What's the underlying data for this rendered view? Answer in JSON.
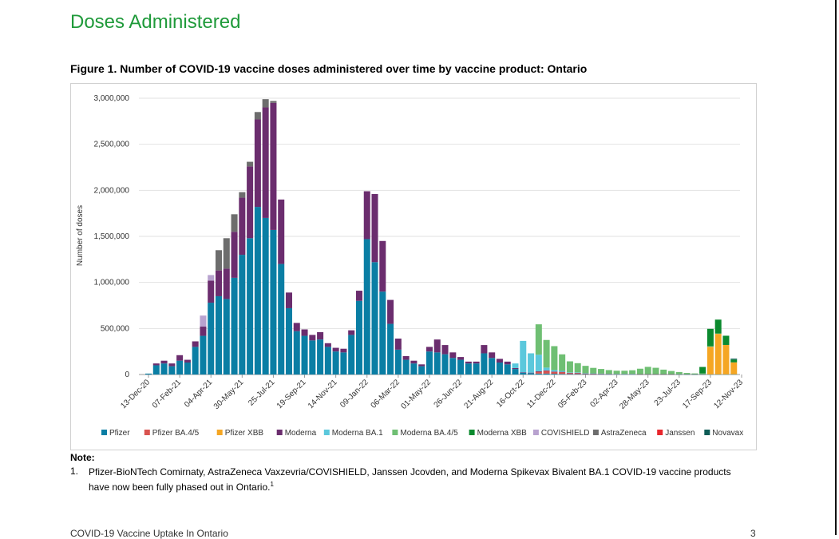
{
  "page": {
    "heading": "Doses Administered",
    "figure_title": "Figure 1. Number of COVID-19 vaccine doses administered over time by vaccine product: Ontario",
    "note_label": "Note:",
    "note_number": "1.",
    "note_text": "Pfizer-BioNTech Comirnaty, AstraZeneca Vaxzevria/COVISHIELD, Janssen Jcovden, and Moderna Spikevax Bivalent BA.1 COVID-19 vaccine products have now been fully phased out in Ontario.",
    "note_superscript": "1",
    "footer_left": "COVID-19 Vaccine Uptake In Ontario",
    "footer_right": "3"
  },
  "chart_data": {
    "type": "bar",
    "stacked": true,
    "ylabel": "Number of doses",
    "ylim": [
      0,
      3000000
    ],
    "y_ticks": [
      "0",
      "500,000",
      "1,000,000",
      "1,500,000",
      "2,000,000",
      "2,500,000",
      "3,000,000"
    ],
    "y_tick_values": [
      0,
      500000,
      1000000,
      1500000,
      2000000,
      2500000,
      3000000
    ],
    "grid": true,
    "legend_position": "bottom",
    "x_tick_labels": [
      "13-Dec-20",
      "07-Feb-21",
      "04-Apr-21",
      "30-May-21",
      "25-Jul-21",
      "19-Sep-21",
      "14-Nov-21",
      "09-Jan-22",
      "06-Mar-22",
      "01-May-22",
      "26-Jun-22",
      "21-Aug-22",
      "16-Oct-22",
      "11-Dec-22",
      "05-Feb-23",
      "02-Apr-23",
      "28-May-23",
      "23-Jul-23",
      "17-Sep-23",
      "12-Nov-23"
    ],
    "x_tick_every": 4,
    "series": [
      {
        "name": "Pfizer",
        "color": "#0a7ea4",
        "values": [
          10000,
          100000,
          120000,
          90000,
          150000,
          130000,
          300000,
          420000,
          780000,
          850000,
          820000,
          1050000,
          1300000,
          1480000,
          1820000,
          1700000,
          1570000,
          1200000,
          720000,
          470000,
          420000,
          370000,
          380000,
          300000,
          250000,
          240000,
          430000,
          800000,
          1470000,
          1220000,
          900000,
          550000,
          270000,
          160000,
          120000,
          90000,
          250000,
          240000,
          220000,
          180000,
          160000,
          120000,
          120000,
          230000,
          180000,
          130000,
          110000,
          60000,
          20000,
          15000,
          10000,
          10000,
          8000,
          6000,
          5000,
          5000,
          4000,
          3000,
          3000,
          2000,
          2000,
          2000,
          2000,
          1000,
          1000,
          1000,
          1000,
          1000,
          1000,
          1000,
          1000,
          1000,
          1000,
          1000,
          1000,
          2000
        ]
      },
      {
        "name": "Pfizer BA.4/5",
        "color": "#d9534f",
        "values": [
          0,
          0,
          0,
          0,
          0,
          0,
          0,
          0,
          0,
          0,
          0,
          0,
          0,
          0,
          0,
          0,
          0,
          0,
          0,
          0,
          0,
          0,
          0,
          0,
          0,
          0,
          0,
          0,
          0,
          0,
          0,
          0,
          0,
          0,
          0,
          0,
          0,
          0,
          0,
          0,
          0,
          0,
          0,
          0,
          0,
          0,
          0,
          0,
          0,
          0,
          20000,
          30000,
          20000,
          20000,
          10000,
          10000,
          5000,
          5000,
          3000,
          3000,
          2000,
          2000,
          2000,
          1000,
          1000,
          1000,
          1000,
          1000,
          0,
          0,
          0,
          0,
          0,
          0,
          0,
          0
        ]
      },
      {
        "name": "Pfizer XBB",
        "color": "#f5a623",
        "values": [
          0,
          0,
          0,
          0,
          0,
          0,
          0,
          0,
          0,
          0,
          0,
          0,
          0,
          0,
          0,
          0,
          0,
          0,
          0,
          0,
          0,
          0,
          0,
          0,
          0,
          0,
          0,
          0,
          0,
          0,
          0,
          0,
          0,
          0,
          0,
          0,
          0,
          0,
          0,
          0,
          0,
          0,
          0,
          0,
          0,
          0,
          0,
          0,
          0,
          0,
          0,
          0,
          0,
          0,
          0,
          0,
          0,
          0,
          0,
          0,
          0,
          0,
          0,
          0,
          0,
          0,
          0,
          0,
          0,
          0,
          0,
          0,
          300000,
          440000,
          320000,
          130000
        ]
      },
      {
        "name": "Moderna",
        "color": "#6b2d6e",
        "values": [
          0,
          20000,
          30000,
          30000,
          60000,
          30000,
          60000,
          100000,
          240000,
          280000,
          330000,
          500000,
          620000,
          780000,
          950000,
          1200000,
          1380000,
          700000,
          170000,
          90000,
          70000,
          60000,
          80000,
          40000,
          40000,
          40000,
          50000,
          110000,
          520000,
          740000,
          550000,
          260000,
          120000,
          40000,
          30000,
          20000,
          50000,
          140000,
          100000,
          60000,
          30000,
          20000,
          20000,
          90000,
          60000,
          40000,
          30000,
          10000,
          5000,
          5000,
          5000,
          5000,
          5000,
          3000,
          3000,
          3000,
          2000,
          2000,
          2000,
          2000,
          1000,
          1000,
          1000,
          1000,
          1000,
          1000,
          1000,
          1000,
          1000,
          1000,
          1000,
          1000,
          0,
          0,
          0,
          0
        ]
      },
      {
        "name": "Moderna BA.1",
        "color": "#5bc8dc",
        "values": [
          0,
          0,
          0,
          0,
          0,
          0,
          0,
          0,
          0,
          0,
          0,
          0,
          0,
          0,
          0,
          0,
          0,
          0,
          0,
          0,
          0,
          0,
          0,
          0,
          0,
          0,
          0,
          0,
          0,
          0,
          0,
          0,
          0,
          0,
          0,
          0,
          0,
          0,
          0,
          0,
          0,
          0,
          0,
          0,
          0,
          0,
          0,
          50000,
          340000,
          210000,
          180000,
          30000,
          15000,
          10000,
          5000,
          5000,
          3000,
          2000,
          2000,
          1000,
          1000,
          1000,
          1000,
          0,
          0,
          0,
          0,
          0,
          0,
          0,
          0,
          0,
          0,
          0,
          0,
          0
        ]
      },
      {
        "name": "Moderna BA.4/5",
        "color": "#6fbf73",
        "values": [
          0,
          0,
          0,
          0,
          0,
          0,
          0,
          0,
          0,
          0,
          0,
          0,
          0,
          0,
          0,
          0,
          0,
          0,
          0,
          0,
          0,
          0,
          0,
          0,
          0,
          0,
          0,
          0,
          0,
          0,
          0,
          0,
          0,
          0,
          0,
          0,
          0,
          0,
          0,
          0,
          0,
          0,
          0,
          0,
          0,
          0,
          0,
          0,
          0,
          0,
          330000,
          300000,
          260000,
          180000,
          120000,
          100000,
          80000,
          60000,
          50000,
          40000,
          35000,
          35000,
          40000,
          60000,
          80000,
          70000,
          50000,
          35000,
          25000,
          15000,
          10000,
          10000,
          5000,
          5000,
          0,
          0
        ]
      },
      {
        "name": "Moderna XBB",
        "color": "#0b8a2e",
        "values": [
          0,
          0,
          0,
          0,
          0,
          0,
          0,
          0,
          0,
          0,
          0,
          0,
          0,
          0,
          0,
          0,
          0,
          0,
          0,
          0,
          0,
          0,
          0,
          0,
          0,
          0,
          0,
          0,
          0,
          0,
          0,
          0,
          0,
          0,
          0,
          0,
          0,
          0,
          0,
          0,
          0,
          0,
          0,
          0,
          0,
          0,
          0,
          0,
          0,
          0,
          0,
          0,
          0,
          0,
          0,
          0,
          0,
          0,
          0,
          0,
          0,
          0,
          0,
          0,
          0,
          0,
          0,
          0,
          0,
          0,
          0,
          70000,
          190000,
          150000,
          100000,
          30000
        ]
      },
      {
        "name": "COVISHIELD",
        "color": "#b8a2cf",
        "values": [
          0,
          0,
          0,
          0,
          0,
          0,
          0,
          120000,
          60000,
          0,
          0,
          0,
          0,
          0,
          0,
          0,
          0,
          0,
          0,
          0,
          0,
          0,
          0,
          0,
          0,
          0,
          0,
          0,
          0,
          0,
          0,
          0,
          0,
          0,
          0,
          0,
          0,
          0,
          0,
          0,
          0,
          0,
          0,
          0,
          0,
          0,
          0,
          0,
          0,
          0,
          0,
          0,
          0,
          0,
          0,
          0,
          0,
          0,
          0,
          0,
          0,
          0,
          0,
          0,
          0,
          0,
          0,
          0,
          0,
          0,
          0,
          0,
          0,
          0,
          0,
          0
        ]
      },
      {
        "name": "AstraZeneca",
        "color": "#6d6d6d",
        "values": [
          0,
          0,
          0,
          0,
          0,
          0,
          0,
          0,
          0,
          220000,
          330000,
          190000,
          60000,
          50000,
          80000,
          90000,
          20000,
          0,
          0,
          0,
          0,
          0,
          0,
          0,
          0,
          0,
          0,
          0,
          0,
          0,
          0,
          0,
          0,
          0,
          0,
          0,
          0,
          0,
          0,
          0,
          0,
          0,
          0,
          0,
          0,
          0,
          0,
          0,
          0,
          0,
          0,
          0,
          0,
          0,
          0,
          0,
          0,
          0,
          0,
          0,
          0,
          0,
          0,
          0,
          0,
          0,
          0,
          0,
          0,
          0,
          0,
          0,
          0,
          0,
          0,
          0
        ]
      },
      {
        "name": "Janssen",
        "color": "#e8262c",
        "values": [
          0,
          0,
          0,
          0,
          0,
          0,
          0,
          0,
          0,
          0,
          0,
          0,
          0,
          0,
          0,
          0,
          0,
          0,
          0,
          0,
          0,
          0,
          0,
          0,
          0,
          0,
          0,
          0,
          0,
          0,
          0,
          0,
          0,
          0,
          0,
          0,
          0,
          0,
          0,
          0,
          0,
          0,
          0,
          0,
          0,
          0,
          0,
          0,
          0,
          0,
          0,
          0,
          0,
          0,
          0,
          0,
          0,
          0,
          0,
          0,
          0,
          0,
          0,
          0,
          0,
          0,
          0,
          0,
          0,
          0,
          0,
          0,
          0,
          0,
          0,
          0
        ]
      },
      {
        "name": "Novavax",
        "color": "#0e5c56",
        "values": [
          0,
          0,
          0,
          0,
          0,
          0,
          0,
          0,
          0,
          0,
          0,
          0,
          0,
          0,
          0,
          0,
          0,
          0,
          0,
          0,
          0,
          0,
          0,
          0,
          0,
          0,
          0,
          0,
          0,
          0,
          0,
          0,
          0,
          0,
          0,
          0,
          0,
          0,
          0,
          0,
          0,
          0,
          0,
          0,
          0,
          0,
          0,
          0,
          0,
          0,
          0,
          0,
          0,
          0,
          0,
          0,
          0,
          0,
          0,
          0,
          0,
          0,
          0,
          0,
          0,
          0,
          0,
          0,
          0,
          0,
          0,
          0,
          0,
          0,
          0,
          10000
        ]
      }
    ]
  }
}
